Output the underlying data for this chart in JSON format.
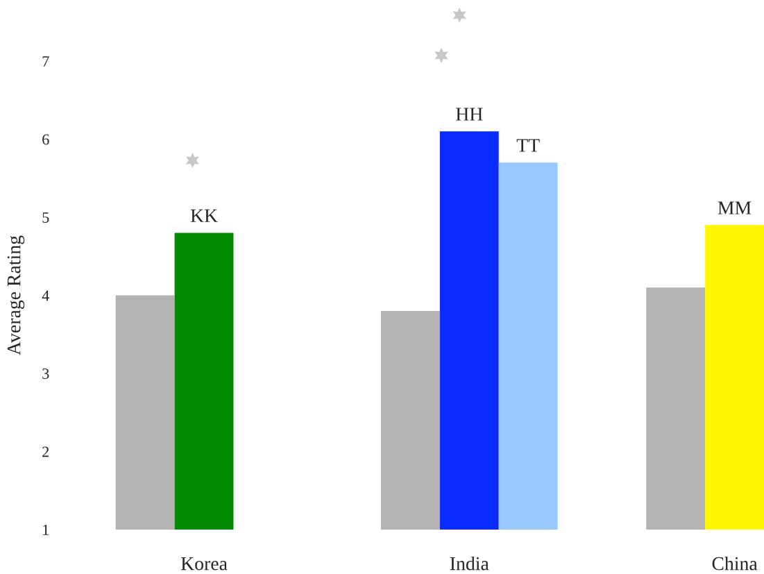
{
  "chart_data": {
    "type": "bar",
    "ylabel": "Average Rating",
    "categories": [
      "Korea",
      "India",
      "China"
    ],
    "series": [
      {
        "color": "#b3b3b3",
        "values": [
          4.0,
          3.8,
          4.1
        ]
      },
      {
        "colors": [
          "#008a00",
          "#0c2cff",
          "#fff700"
        ],
        "values": [
          4.8,
          6.1,
          4.9
        ]
      },
      {
        "color": "#99c8ff",
        "values": [
          null,
          5.7,
          null
        ]
      }
    ],
    "annotations": [
      "KK",
      "HH",
      "TT",
      "MM"
    ],
    "ylim": [
      1,
      7
    ],
    "yticks": [
      1,
      2,
      3,
      4,
      5,
      6,
      7
    ],
    "grid": false,
    "legend": false
  }
}
